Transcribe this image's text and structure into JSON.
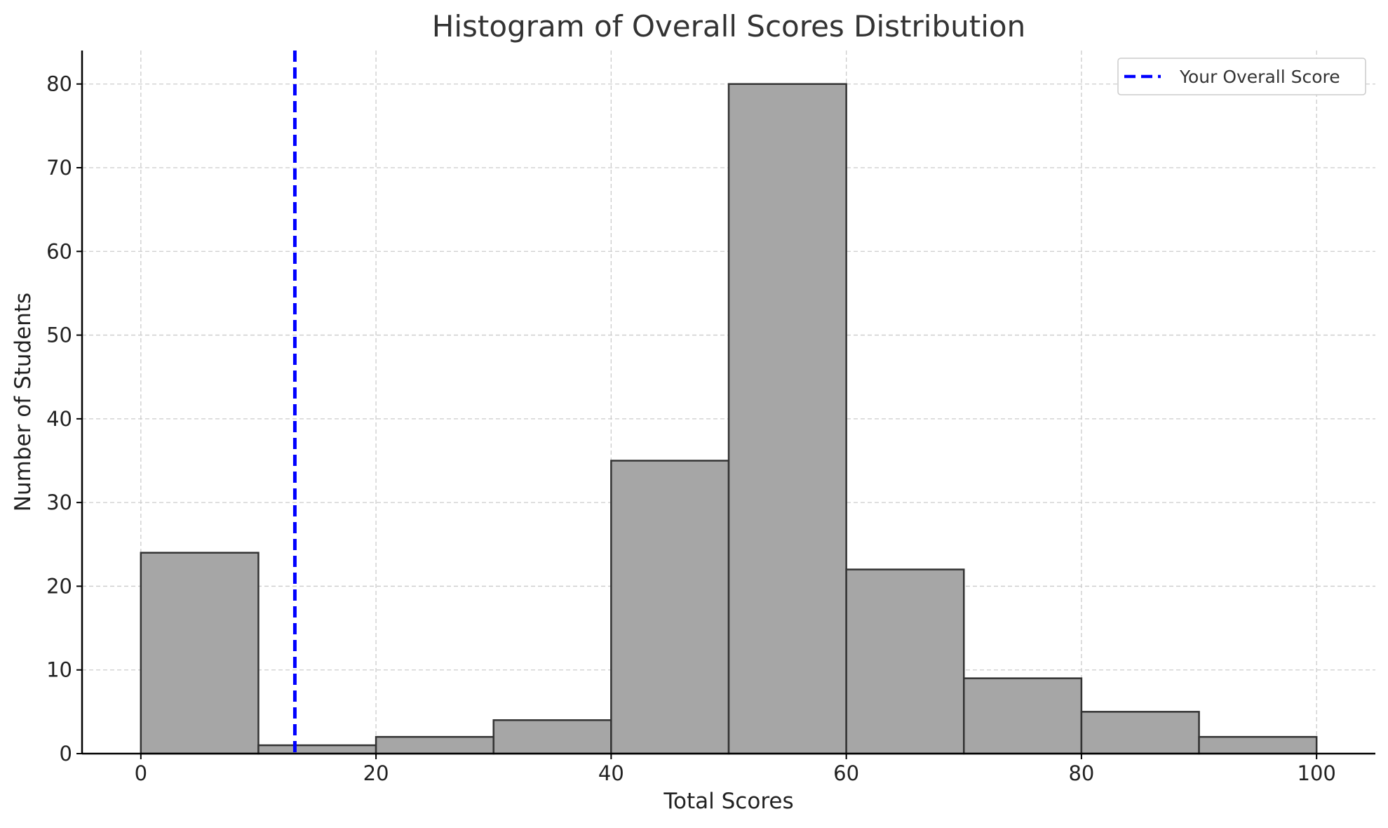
{
  "chart_data": {
    "type": "bar",
    "title": "Histogram of Overall Scores Distribution",
    "xlabel": "Total Scores",
    "ylabel": "Number of Students",
    "bins": [
      {
        "start": 0,
        "end": 10,
        "count": 24
      },
      {
        "start": 10,
        "end": 20,
        "count": 1
      },
      {
        "start": 20,
        "end": 30,
        "count": 2
      },
      {
        "start": 30,
        "end": 40,
        "count": 4
      },
      {
        "start": 40,
        "end": 50,
        "count": 35
      },
      {
        "start": 50,
        "end": 60,
        "count": 80
      },
      {
        "start": 60,
        "end": 70,
        "count": 22
      },
      {
        "start": 70,
        "end": 80,
        "count": 9
      },
      {
        "start": 80,
        "end": 90,
        "count": 5
      },
      {
        "start": 90,
        "end": 100,
        "count": 2
      }
    ],
    "xlim": [
      -5,
      105
    ],
    "ylim": [
      0,
      84
    ],
    "xticks": [
      0,
      20,
      40,
      60,
      80,
      100
    ],
    "yticks": [
      0,
      10,
      20,
      30,
      40,
      50,
      60,
      70,
      80
    ],
    "grid": true,
    "reference_line": {
      "name": "Your Overall Score",
      "x": 13.1,
      "color": "#0000ff",
      "style": "dashed"
    },
    "legend": {
      "placement": "top-right",
      "entries": [
        "Your Overall Score"
      ]
    },
    "colors": {
      "bar_fill": "#a6a6a6",
      "bar_edge": "#333333",
      "grid": "#cccccc",
      "axis": "#000000"
    }
  }
}
